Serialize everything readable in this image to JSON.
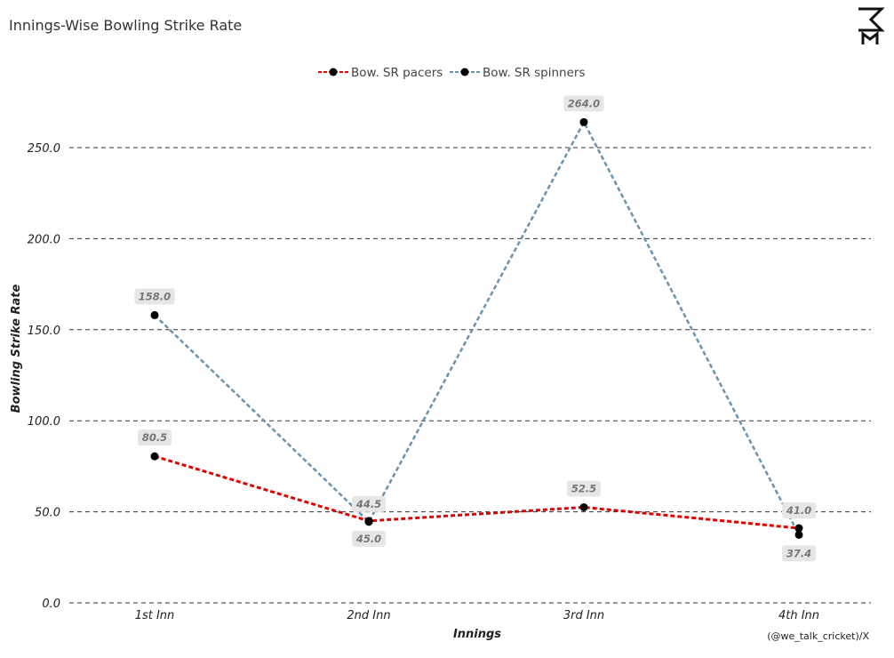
{
  "chart_title": "Innings-Wise Bowling Strike Rate",
  "credit": "(@we_talk_cricket)/X",
  "logo_text": "WE TALK CRICKET",
  "chart_data": {
    "type": "line",
    "title": "Innings-Wise Bowling Strike Rate",
    "xlabel": "Innings",
    "ylabel": "Bowling Strike Rate",
    "categories": [
      "1st Inn",
      "2nd Inn",
      "3rd Inn",
      "4th Inn"
    ],
    "ylim": [
      0,
      270
    ],
    "yticks": [
      0,
      50,
      100,
      150,
      200,
      250
    ],
    "ytick_labels": [
      "0.0",
      "50.0",
      "100.0",
      "150.0",
      "200.0",
      "250.0"
    ],
    "grid": "horizontal dashed",
    "legend_position": "top-center",
    "series": [
      {
        "name": "Bow. SR pacers",
        "color": "#e00000",
        "values": [
          80.5,
          45.0,
          52.5,
          41.0
        ],
        "labels": [
          "80.5",
          "45.0",
          "52.5",
          "41.0"
        ]
      },
      {
        "name": "Bow. SR spinners",
        "color": "#6a93ad",
        "values": [
          158.0,
          44.5,
          264.0,
          37.4
        ],
        "labels": [
          "158.0",
          "44.5",
          "264.0",
          "37.4"
        ]
      }
    ]
  }
}
